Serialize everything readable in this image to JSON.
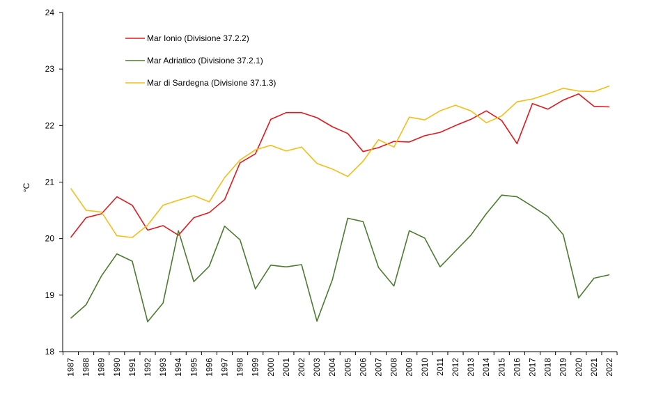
{
  "chart_data": {
    "type": "line",
    "title": "",
    "xlabel": "",
    "ylabel": "°C",
    "ylim": [
      18,
      24
    ],
    "yticks": [
      18,
      19,
      20,
      21,
      22,
      23,
      24
    ],
    "grid": false,
    "legend_position": "top-left",
    "x": [
      "1987",
      "1988",
      "1989",
      "1990",
      "1991",
      "1992",
      "1993",
      "1994",
      "1995",
      "1996",
      "1997",
      "1998",
      "1999",
      "2000",
      "2001",
      "2002",
      "2003",
      "2004",
      "2005",
      "2006",
      "2007",
      "2008",
      "2009",
      "2010",
      "2011",
      "2012",
      "2013",
      "2014",
      "2015",
      "2016",
      "2017",
      "2018",
      "2019",
      "2020",
      "2021",
      "2022"
    ],
    "series": [
      {
        "name": "Mar Ionio (Divisione 37.2.2)",
        "color": "#e3181d",
        "values": [
          20.02,
          20.37,
          20.44,
          20.74,
          20.59,
          20.15,
          20.23,
          20.06,
          20.37,
          20.46,
          20.69,
          21.34,
          21.5,
          22.11,
          22.23,
          22.23,
          22.14,
          21.98,
          21.86,
          21.54,
          21.61,
          21.72,
          21.71,
          21.82,
          21.88,
          22.0,
          22.11,
          22.26,
          22.09,
          21.68,
          22.39,
          22.29,
          22.45,
          22.56,
          22.34,
          22.33
        ]
      },
      {
        "name": "Mar Adriatico (Divisione 37.2.1)",
        "color": "#4c7a2e",
        "values": [
          18.59,
          18.83,
          19.34,
          19.73,
          19.6,
          18.53,
          18.86,
          20.14,
          19.24,
          19.51,
          20.22,
          19.98,
          19.11,
          19.53,
          19.5,
          19.54,
          18.54,
          19.27,
          20.36,
          20.3,
          19.49,
          19.16,
          20.14,
          20.01,
          19.5,
          19.78,
          20.06,
          20.44,
          20.77,
          20.74,
          20.57,
          20.39,
          20.07,
          18.95,
          19.3,
          19.36
        ]
      },
      {
        "name": "Mar di Sardegna (Divisione 37.1.3)",
        "color": "#f5bd17",
        "values": [
          20.89,
          20.5,
          20.47,
          20.05,
          20.02,
          20.24,
          20.59,
          20.68,
          20.76,
          20.65,
          21.08,
          21.39,
          21.57,
          21.65,
          21.55,
          21.62,
          21.33,
          21.23,
          21.1,
          21.37,
          21.75,
          21.62,
          22.15,
          22.1,
          22.26,
          22.36,
          22.26,
          22.05,
          22.17,
          22.42,
          22.47,
          22.56,
          22.66,
          22.61,
          22.6,
          22.7
        ]
      }
    ]
  }
}
